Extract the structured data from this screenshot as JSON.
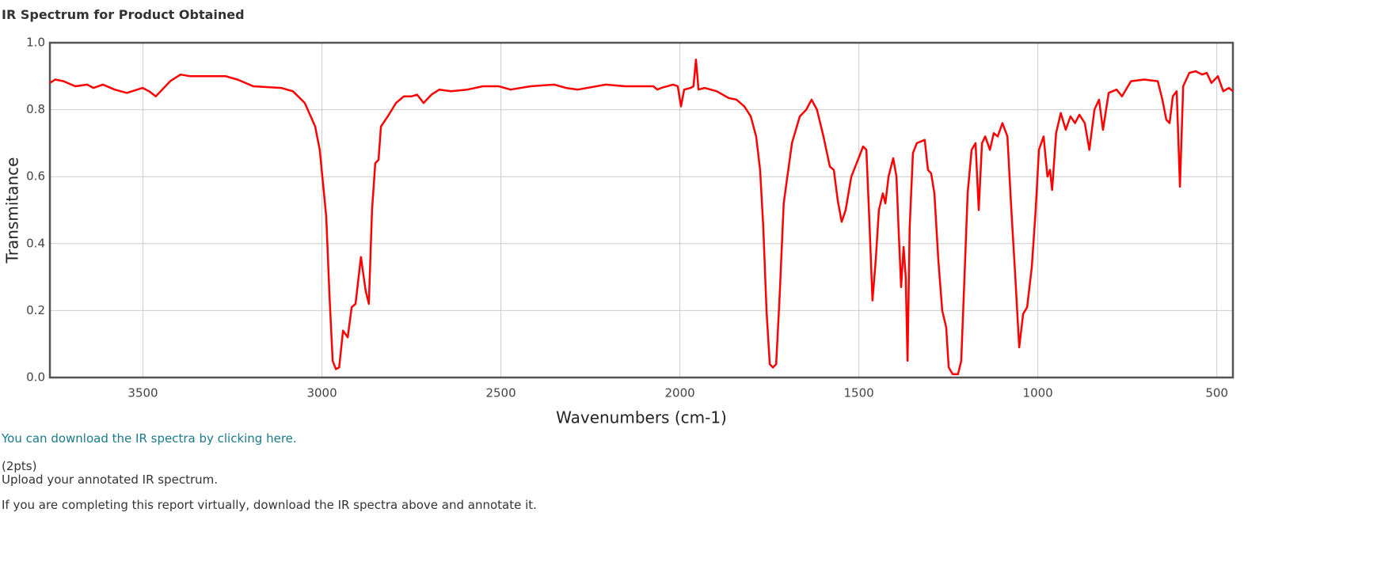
{
  "title": "IR Spectrum for Product Obtained",
  "chart_data": {
    "type": "line",
    "x_label": "Wavenumbers (cm-1)",
    "y_label": "Transmitance",
    "xlim": [
      3760,
      455
    ],
    "ylim": [
      0,
      1
    ],
    "xticks": [
      3500,
      3000,
      2500,
      2000,
      1500,
      1000,
      500
    ],
    "yticks": [
      {
        "value": 0,
        "label": "0.0"
      },
      0.2,
      0.4,
      0.6,
      0.8,
      {
        "value": 1,
        "label": "1.0"
      }
    ],
    "grid": true,
    "color": "#ff0000",
    "x": [
      3760,
      3745,
      3722,
      3689,
      3656,
      3638,
      3612,
      3579,
      3545,
      3501,
      3483,
      3464,
      3446,
      3424,
      3395,
      3368,
      3269,
      3236,
      3192,
      3114,
      3081,
      3048,
      3019,
      3006,
      2997,
      2988,
      2979,
      2970,
      2961,
      2952,
      2941,
      2928,
      2917,
      2906,
      2891,
      2878,
      2869,
      2860,
      2851,
      2842,
      2835,
      2816,
      2793,
      2771,
      2749,
      2734,
      2716,
      2694,
      2672,
      2639,
      2594,
      2550,
      2506,
      2473,
      2417,
      2351,
      2318,
      2285,
      2207,
      2152,
      2074,
      2063,
      2052,
      2019,
      2006,
      1997,
      1988,
      1970,
      1962,
      1955,
      1948,
      1931,
      1897,
      1864,
      1842,
      1820,
      1802,
      1787,
      1776,
      1767,
      1758,
      1749,
      1740,
      1731,
      1721,
      1710,
      1687,
      1665,
      1647,
      1632,
      1617,
      1599,
      1581,
      1570,
      1559,
      1548,
      1537,
      1521,
      1499,
      1488,
      1479,
      1470,
      1462,
      1453,
      1444,
      1433,
      1426,
      1417,
      1404,
      1395,
      1388,
      1382,
      1375,
      1369,
      1364,
      1358,
      1349,
      1338,
      1327,
      1316,
      1307,
      1298,
      1289,
      1278,
      1267,
      1256,
      1249,
      1238,
      1223,
      1214,
      1205,
      1196,
      1185,
      1174,
      1165,
      1156,
      1147,
      1134,
      1123,
      1112,
      1099,
      1085,
      1074,
      1063,
      1052,
      1041,
      1030,
      1017,
      1006,
      997,
      984,
      973,
      966,
      960,
      949,
      936,
      922,
      909,
      896,
      884,
      869,
      856,
      842,
      829,
      818,
      802,
      780,
      765,
      740,
      703,
      665,
      652,
      641,
      632,
      623,
      612,
      603,
      594,
      577,
      559,
      541,
      528,
      515,
      497,
      482,
      466,
      455
    ],
    "values": [
      0.88,
      0.89,
      0.885,
      0.87,
      0.875,
      0.865,
      0.875,
      0.86,
      0.85,
      0.865,
      0.855,
      0.84,
      0.86,
      0.885,
      0.905,
      0.9,
      0.9,
      0.89,
      0.87,
      0.865,
      0.855,
      0.82,
      0.75,
      0.68,
      0.58,
      0.48,
      0.25,
      0.05,
      0.025,
      0.03,
      0.14,
      0.12,
      0.21,
      0.22,
      0.36,
      0.26,
      0.22,
      0.5,
      0.64,
      0.65,
      0.75,
      0.78,
      0.82,
      0.84,
      0.84,
      0.845,
      0.82,
      0.845,
      0.86,
      0.855,
      0.86,
      0.87,
      0.87,
      0.86,
      0.87,
      0.875,
      0.865,
      0.86,
      0.875,
      0.87,
      0.87,
      0.86,
      0.865,
      0.875,
      0.87,
      0.81,
      0.86,
      0.865,
      0.87,
      0.95,
      0.86,
      0.865,
      0.855,
      0.835,
      0.83,
      0.81,
      0.78,
      0.72,
      0.62,
      0.45,
      0.2,
      0.04,
      0.03,
      0.04,
      0.25,
      0.52,
      0.7,
      0.78,
      0.8,
      0.83,
      0.8,
      0.72,
      0.63,
      0.62,
      0.53,
      0.465,
      0.5,
      0.6,
      0.66,
      0.69,
      0.68,
      0.45,
      0.23,
      0.35,
      0.5,
      0.55,
      0.52,
      0.6,
      0.655,
      0.6,
      0.42,
      0.27,
      0.39,
      0.3,
      0.05,
      0.45,
      0.67,
      0.7,
      0.705,
      0.71,
      0.62,
      0.61,
      0.55,
      0.35,
      0.2,
      0.15,
      0.03,
      0.01,
      0.01,
      0.05,
      0.3,
      0.55,
      0.68,
      0.7,
      0.5,
      0.7,
      0.72,
      0.68,
      0.73,
      0.72,
      0.76,
      0.72,
      0.5,
      0.3,
      0.09,
      0.19,
      0.21,
      0.33,
      0.5,
      0.68,
      0.72,
      0.6,
      0.62,
      0.56,
      0.73,
      0.79,
      0.74,
      0.78,
      0.76,
      0.785,
      0.76,
      0.68,
      0.8,
      0.83,
      0.74,
      0.85,
      0.86,
      0.84,
      0.885,
      0.89,
      0.885,
      0.83,
      0.77,
      0.76,
      0.84,
      0.855,
      0.57,
      0.87,
      0.91,
      0.915,
      0.905,
      0.91,
      0.88,
      0.9,
      0.855,
      0.865,
      0.855
    ]
  },
  "link": "You can download the IR spectra by clicking here.",
  "points": "(2pts)",
  "prompt": "Upload your annotated IR spectrum.",
  "note": "If you are completing this report virtually, download the IR spectra above and annotate it."
}
